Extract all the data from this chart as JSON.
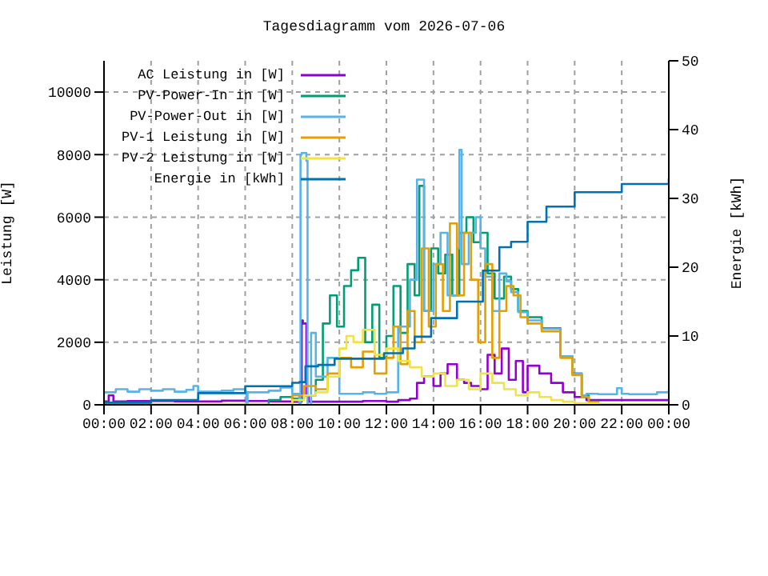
{
  "chart_data": {
    "type": "step",
    "title": "Tagesdiagramm vom 2026-07-06",
    "ylabel": "Leistung [W]",
    "y2label": "Energie [kWh]",
    "xlim": [
      0,
      24
    ],
    "xticks": [
      {
        "value": 0,
        "label": "00:00"
      },
      {
        "value": 2,
        "label": "02:00"
      },
      {
        "value": 4,
        "label": "04:00"
      },
      {
        "value": 6,
        "label": "06:00"
      },
      {
        "value": 8,
        "label": "08:00"
      },
      {
        "value": 10,
        "label": "10:00"
      },
      {
        "value": 12,
        "label": "12:00"
      },
      {
        "value": 14,
        "label": "14:00"
      },
      {
        "value": 16,
        "label": "16:00"
      },
      {
        "value": 18,
        "label": "18:00"
      },
      {
        "value": 20,
        "label": "20:00"
      },
      {
        "value": 22,
        "label": "22:00"
      },
      {
        "value": 24,
        "label": "00:00"
      }
    ],
    "ylim": [
      0,
      11000
    ],
    "yticks": [
      0,
      2000,
      4000,
      6000,
      8000,
      10000
    ],
    "y2lim": [
      0,
      50
    ],
    "y2ticks": [
      0,
      10,
      20,
      30,
      40,
      50
    ],
    "grid": true,
    "legend": "top left",
    "series": [
      {
        "name": "AC Leistung in [W]",
        "color": "#9400d3",
        "x": [
          0,
          0.2,
          0.4,
          1,
          3,
          5,
          6,
          7,
          8,
          8.4,
          8.45,
          8.6,
          8.7,
          10,
          11,
          12,
          12.5,
          13,
          13.3,
          13.6,
          14,
          14.3,
          14.6,
          15,
          15.3,
          15.6,
          16,
          16.3,
          16.6,
          16.9,
          17.2,
          17.5,
          17.8,
          18,
          18.5,
          19,
          19.5,
          20,
          20.5,
          21,
          22,
          23,
          24
        ],
        "values": [
          110,
          300,
          110,
          120,
          110,
          130,
          120,
          110,
          100,
          2700,
          2600,
          300,
          100,
          100,
          120,
          100,
          150,
          200,
          700,
          900,
          600,
          1000,
          1300,
          800,
          700,
          600,
          500,
          1600,
          1000,
          1800,
          800,
          1400,
          400,
          1250,
          1000,
          700,
          400,
          250,
          150,
          150,
          150,
          150,
          150
        ]
      },
      {
        "name": "PV-Power-In in [W]",
        "color": "#009e73",
        "x": [
          0,
          6.5,
          7,
          7.5,
          8,
          8.5,
          9,
          9.3,
          9.6,
          9.9,
          10.2,
          10.5,
          10.8,
          11.1,
          11.4,
          11.7,
          12,
          12.3,
          12.6,
          12.9,
          13.2,
          13.4,
          13.6,
          13.9,
          14.2,
          14.5,
          14.8,
          15.1,
          15.4,
          15.7,
          16,
          16.3,
          16.6,
          17,
          17.3,
          17.6,
          18,
          18.6,
          19.4,
          19.9,
          20.3,
          20.6,
          21,
          24
        ],
        "values": [
          0,
          0,
          150,
          250,
          200,
          300,
          800,
          2600,
          3500,
          2500,
          3800,
          4300,
          4700,
          2000,
          3200,
          1500,
          2200,
          3800,
          2300,
          4500,
          3500,
          7000,
          3000,
          5000,
          4200,
          4800,
          3500,
          5500,
          6000,
          5200,
          5500,
          4200,
          3400,
          4100,
          3700,
          3000,
          2800,
          2450,
          1550,
          1000,
          300,
          100,
          0,
          0
        ]
      },
      {
        "name": "PV-Power-Out in [W]",
        "color": "#56b4e9",
        "x": [
          0,
          0.5,
          1,
          1.5,
          2,
          2.5,
          3,
          3.5,
          3.8,
          4,
          5,
          5.5,
          6,
          6.05,
          6.1,
          7,
          7.5,
          8,
          8.3,
          8.35,
          8.4,
          8.6,
          8.65,
          8.8,
          9,
          9.5,
          10,
          10.5,
          11,
          11.5,
          12,
          12.5,
          13,
          13.3,
          13.6,
          14,
          14.3,
          14.6,
          15,
          15.1,
          15.2,
          15.5,
          15.8,
          16,
          16.2,
          16.5,
          16.8,
          17.1,
          17.3,
          17.6,
          18,
          18.6,
          19.4,
          19.9,
          20.3,
          20.5,
          21,
          21.8,
          22,
          22.3,
          23,
          23.5,
          24
        ],
        "values": [
          400,
          500,
          420,
          500,
          450,
          500,
          420,
          480,
          600,
          420,
          450,
          500,
          420,
          0,
          400,
          450,
          550,
          350,
          0,
          8000,
          8050,
          7800,
          0,
          2300,
          900,
          1500,
          350,
          350,
          400,
          350,
          400,
          2500,
          4000,
          7200,
          3000,
          4500,
          5500,
          3500,
          5000,
          8150,
          4500,
          5500,
          6000,
          5000,
          4100,
          3000,
          4200,
          3950,
          3600,
          2960,
          2700,
          2430,
          1550,
          990,
          300,
          350,
          340,
          530,
          350,
          340,
          340,
          400,
          500
        ]
      },
      {
        "name": "PV-1 Leistung in [W]",
        "color": "#e69f00",
        "x": [
          0,
          7,
          8,
          8.5,
          9,
          9.5,
          10,
          10.5,
          11,
          11.5,
          12,
          12.3,
          12.6,
          12.9,
          13.2,
          13.5,
          13.8,
          14.1,
          14.4,
          14.7,
          15,
          15.3,
          15.6,
          15.9,
          16.2,
          16.5,
          16.8,
          17.1,
          17.4,
          17.7,
          18,
          18.6,
          19.4,
          19.9,
          20.3,
          20.6,
          21,
          24
        ],
        "values": [
          0,
          0,
          300,
          600,
          500,
          1000,
          1500,
          1200,
          1700,
          1000,
          1500,
          2500,
          1300,
          3000,
          2000,
          5000,
          2500,
          4500,
          3000,
          5800,
          3500,
          5500,
          4000,
          2000,
          4500,
          1500,
          3000,
          3800,
          3500,
          2800,
          2600,
          2350,
          1500,
          950,
          250,
          80,
          0,
          0
        ]
      },
      {
        "name": "PV-2 Leistung in [W]",
        "color": "#f0e442",
        "x": [
          0,
          7,
          8,
          8.5,
          9,
          9.5,
          10,
          10.3,
          10.6,
          11,
          11.5,
          12,
          12.5,
          13,
          13.5,
          14,
          14.5,
          15,
          15.5,
          16,
          16.5,
          17,
          17.5,
          18,
          18.5,
          19,
          19.5,
          20,
          21,
          24
        ],
        "values": [
          0,
          0,
          150,
          300,
          400,
          900,
          1800,
          2200,
          2000,
          2400,
          1600,
          1800,
          1400,
          1200,
          900,
          1000,
          600,
          800,
          500,
          1000,
          700,
          500,
          300,
          400,
          250,
          150,
          100,
          50,
          0,
          0
        ]
      },
      {
        "name": "Energie in [kWh]",
        "color": "#0072b2",
        "axis": "y2",
        "x": [
          0,
          2,
          4,
          6,
          8,
          8.3,
          8.56,
          9.1,
          9.8,
          11.9,
          12.7,
          13.2,
          13.9,
          15,
          16.1,
          16.8,
          17.3,
          18,
          18.8,
          20,
          22,
          24
        ],
        "values": [
          0.3,
          0.7,
          1.7,
          2.7,
          3.2,
          3.3,
          5.6,
          5.8,
          6.7,
          7.5,
          8.2,
          9.9,
          12.6,
          15,
          19.5,
          22.9,
          23.7,
          26.6,
          28.8,
          30.9,
          32.1,
          32.9
        ]
      }
    ]
  }
}
